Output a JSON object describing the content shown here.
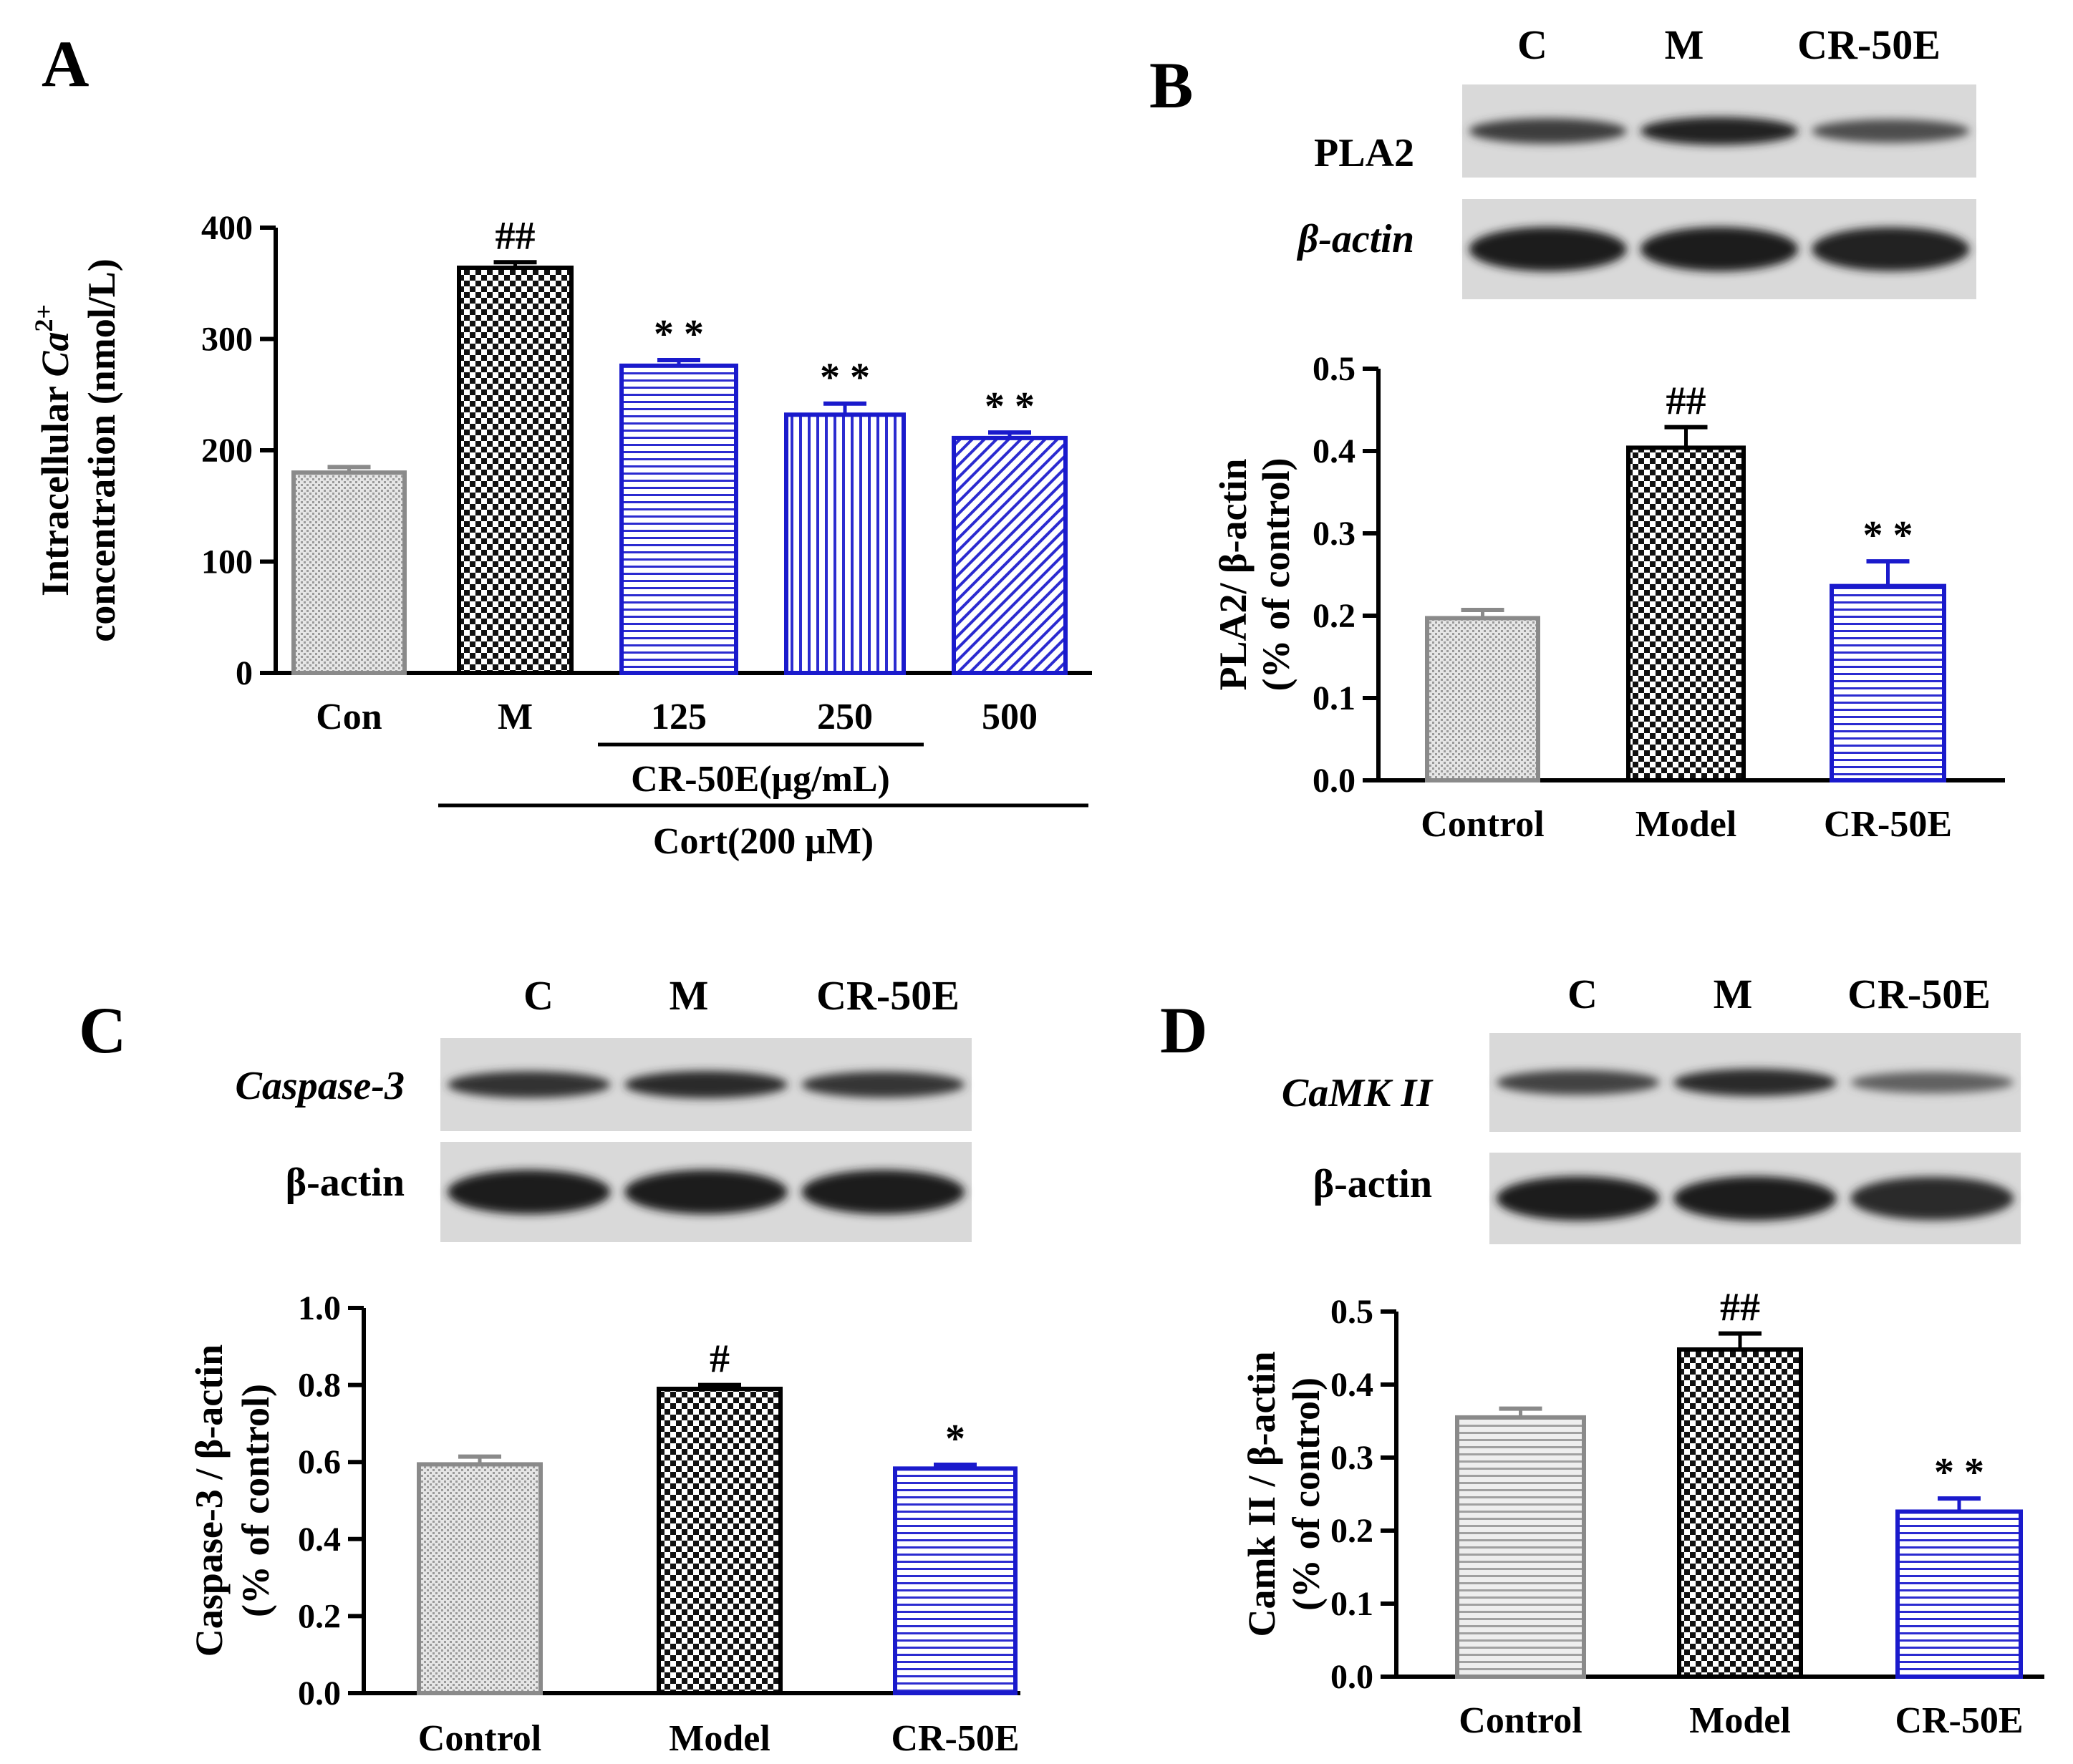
{
  "panels": [
    {
      "id": "A",
      "label": "A",
      "chart_data": {
        "type": "bar",
        "categories": [
          "Con",
          "M",
          "125",
          "250",
          "500"
        ],
        "values": [
          180,
          364,
          276,
          232,
          211
        ],
        "errors": [
          5,
          5,
          5,
          10,
          5
        ],
        "significance": [
          "",
          "##",
          "* *",
          "* *",
          "* *"
        ],
        "ylabel_line1_prefix": "Intracellular ",
        "ylabel_line1_ion": "Ca",
        "ylabel_line1_sup": "2+",
        "ylabel_line2": "concentration (nmol/L)",
        "ylim": [
          0,
          400
        ],
        "yticks": [
          "0",
          "100",
          "200",
          "300",
          "400"
        ],
        "group_labels": [
          "CR-50E(μg/mL)",
          "Cort(200 μM)"
        ],
        "fills": [
          "dots-gray",
          "checker-black",
          "hstripe-blue",
          "vstripe-blue",
          "diag-blue"
        ],
        "colors": [
          "#8a8a8a",
          "#000000",
          "#1a1acc",
          "#1a1acc",
          "#1a1acc"
        ]
      }
    },
    {
      "id": "B",
      "label": "B",
      "blot": {
        "lanes": [
          "C",
          "M",
          "CR-50E"
        ],
        "rows": [
          "PLA2",
          "β-actin"
        ],
        "intensity": [
          [
            0.75,
            0.95,
            0.6
          ],
          [
            1,
            1,
            0.95
          ]
        ]
      },
      "chart_data": {
        "type": "bar",
        "categories": [
          "Control",
          "Model",
          "CR-50E"
        ],
        "values": [
          0.197,
          0.404,
          0.236
        ],
        "errors": [
          0.01,
          0.025,
          0.03
        ],
        "significance": [
          "",
          "##",
          "* *"
        ],
        "ylabel_line1": "PLA2/ β-actin",
        "ylabel_line2": "(% of control)",
        "ylim": [
          0,
          0.5
        ],
        "yticks": [
          "0.0",
          "0.1",
          "0.2",
          "0.3",
          "0.4",
          "0.5"
        ],
        "fills": [
          "dots-gray",
          "checker-black",
          "hstripe-blue"
        ],
        "colors": [
          "#8a8a8a",
          "#000000",
          "#1a1acc"
        ]
      }
    },
    {
      "id": "C",
      "label": "C",
      "blot": {
        "lanes": [
          "C",
          "M",
          "CR-50E"
        ],
        "rows": [
          "Caspase-3",
          "β-actin"
        ],
        "intensity": [
          [
            0.85,
            0.9,
            0.8
          ],
          [
            1,
            1,
            1
          ]
        ]
      },
      "chart_data": {
        "type": "bar",
        "categories": [
          "Control",
          "Model",
          "CR-50E"
        ],
        "values": [
          0.594,
          0.79,
          0.583
        ],
        "errors": [
          0.02,
          0.01,
          0.01
        ],
        "significance": [
          "",
          "#",
          "*"
        ],
        "ylabel_line1": "Caspase-3 / β-actin",
        "ylabel_line2": "(% of control)",
        "ylim": [
          0,
          1.0
        ],
        "yticks": [
          "0.0",
          "0.2",
          "0.4",
          "0.6",
          "0.8",
          "1.0"
        ],
        "fills": [
          "dots-gray",
          "checker-black",
          "hstripe-blue"
        ],
        "colors": [
          "#8a8a8a",
          "#000000",
          "#1a1acc"
        ]
      }
    },
    {
      "id": "D",
      "label": "D",
      "blot": {
        "lanes": [
          "C",
          "M",
          "CR-50E"
        ],
        "rows": [
          "CaMK II",
          "β-actin"
        ],
        "intensity": [
          [
            0.7,
            0.9,
            0.45
          ],
          [
            1,
            1,
            0.9
          ]
        ]
      },
      "chart_data": {
        "type": "bar",
        "categories": [
          "Control",
          "Model",
          "CR-50E"
        ],
        "values": [
          0.355,
          0.448,
          0.226
        ],
        "errors": [
          0.012,
          0.022,
          0.018
        ],
        "significance": [
          "",
          "##",
          "* *"
        ],
        "ylabel_line1": "Camk II / β-actin",
        "ylabel_line2": "(% of control)",
        "ylim": [
          0,
          0.5
        ],
        "yticks": [
          "0.0",
          "0.1",
          "0.2",
          "0.3",
          "0.4",
          "0.5"
        ],
        "fills": [
          "hstripe-gray",
          "checker-black",
          "hstripe-blue"
        ],
        "colors": [
          "#8a8a8a",
          "#000000",
          "#1a1acc"
        ]
      }
    }
  ]
}
